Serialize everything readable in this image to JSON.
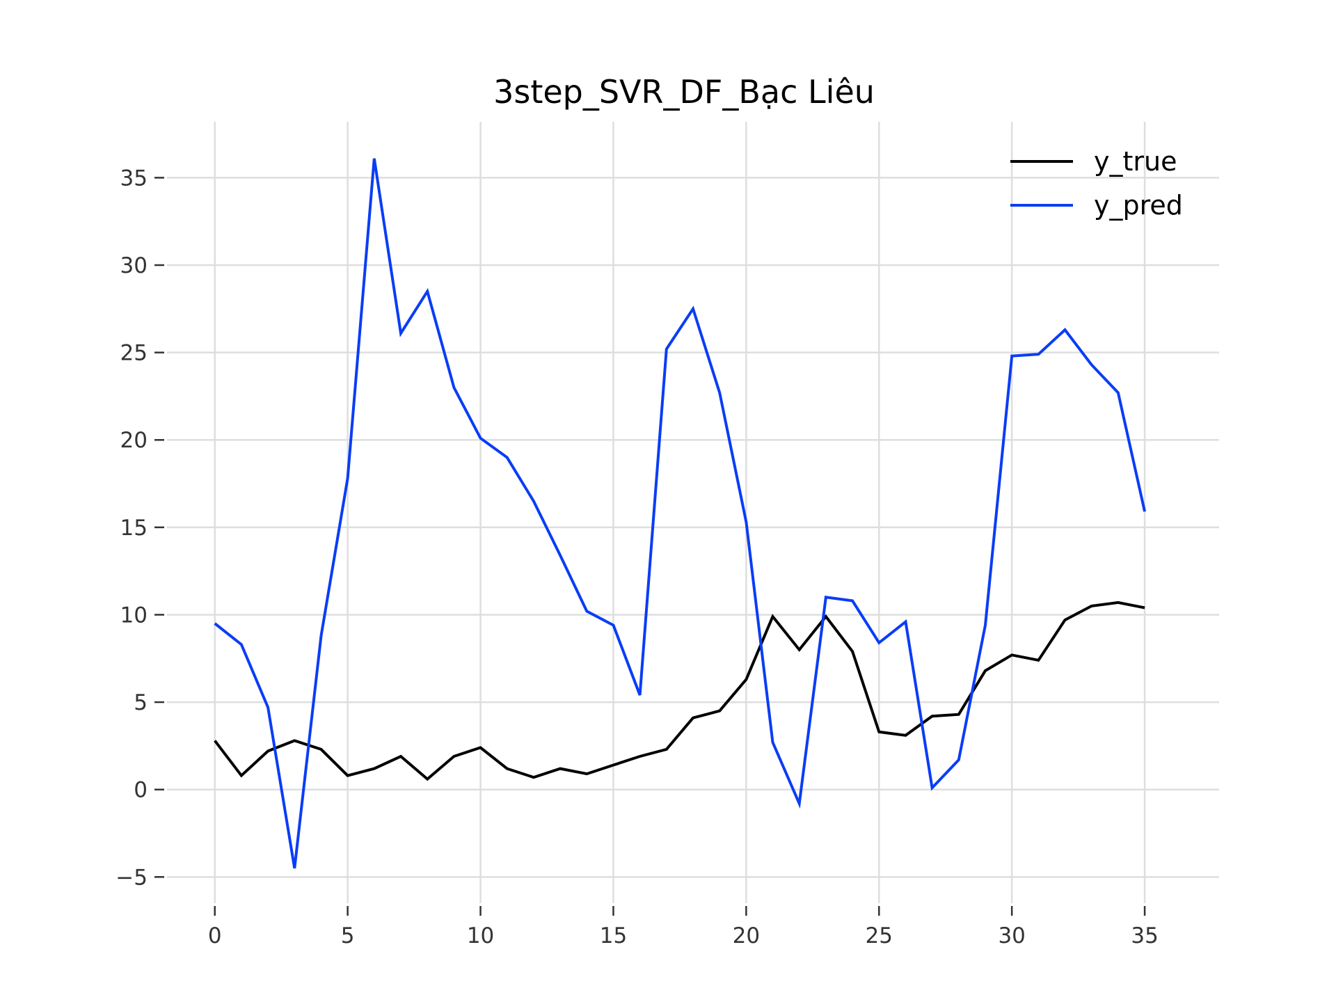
{
  "chart_data": {
    "type": "line",
    "title": "3step_SVR_DF_Bạc Liêu",
    "xlabel": "",
    "ylabel": "",
    "xlim": [
      -1.8,
      37.8
    ],
    "ylim": [
      -6.5,
      38.2
    ],
    "xticks": [
      0,
      5,
      10,
      15,
      20,
      25,
      30,
      35
    ],
    "yticks": [
      -5,
      0,
      5,
      10,
      15,
      20,
      25,
      30,
      35
    ],
    "ytick_labels": [
      "−5",
      "0",
      "5",
      "10",
      "15",
      "20",
      "25",
      "30",
      "35"
    ],
    "grid": true,
    "legend_position": "top-right",
    "x": [
      0,
      1,
      2,
      3,
      4,
      5,
      6,
      7,
      8,
      9,
      10,
      11,
      12,
      13,
      14,
      15,
      16,
      17,
      18,
      19,
      20,
      21,
      22,
      23,
      24,
      25,
      26,
      27,
      28,
      29,
      30,
      31,
      32,
      33,
      34,
      35
    ],
    "series": [
      {
        "name": "y_true",
        "color": "#000000",
        "values": [
          2.8,
          0.8,
          2.2,
          2.8,
          2.3,
          0.8,
          1.2,
          1.9,
          0.6,
          1.9,
          2.4,
          1.2,
          0.7,
          1.2,
          0.9,
          1.4,
          1.9,
          2.3,
          4.1,
          4.5,
          6.3,
          9.9,
          8.0,
          9.9,
          7.9,
          3.3,
          3.1,
          4.2,
          4.3,
          6.8,
          7.7,
          7.4,
          9.7,
          10.5,
          10.7,
          10.4
        ]
      },
      {
        "name": "y_pred",
        "color": "#0a3df5",
        "values": [
          9.5,
          8.3,
          4.7,
          -4.5,
          8.8,
          17.8,
          36.1,
          26.1,
          28.5,
          23.0,
          20.1,
          19.0,
          16.5,
          13.4,
          10.2,
          9.4,
          5.4,
          25.2,
          27.5,
          22.7,
          15.3,
          2.7,
          -0.8,
          11.0,
          10.8,
          8.4,
          9.6,
          0.1,
          1.7,
          9.4,
          24.8,
          24.9,
          26.3,
          24.3,
          22.7,
          15.9
        ]
      }
    ]
  }
}
